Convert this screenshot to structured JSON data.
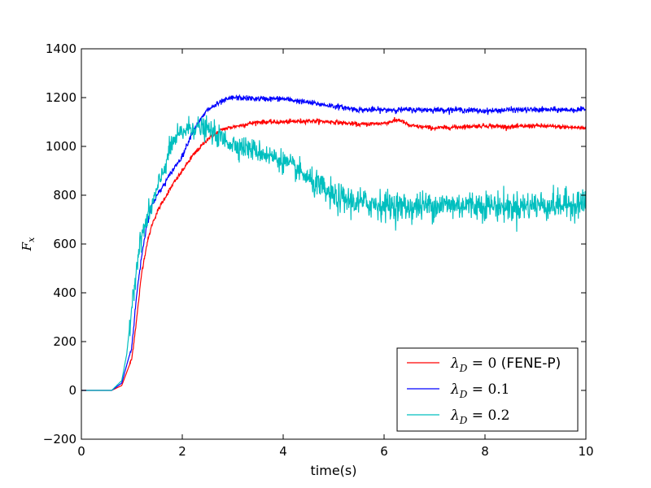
{
  "chart_data": {
    "type": "line",
    "xlabel": "time(s)",
    "ylabel": "F_x",
    "xlim": [
      0,
      10
    ],
    "ylim": [
      -200,
      1400
    ],
    "xticks": [
      0,
      2,
      4,
      6,
      8,
      10
    ],
    "yticks": [
      -200,
      0,
      200,
      400,
      600,
      800,
      1000,
      1200,
      1400
    ],
    "grid": false,
    "legend_position": "lower-right",
    "series": [
      {
        "name": "λ_D = 0 (FENE-P)",
        "legend_math": "λ",
        "legend_sub": "D",
        "legend_eq": " = 0",
        "legend_extra": " (FENE-P)",
        "color": "#ff0000",
        "noise": 8,
        "x": [
          0,
          0.6,
          0.8,
          1.0,
          1.1,
          1.2,
          1.3,
          1.4,
          1.5,
          1.6,
          1.8,
          2.0,
          2.2,
          2.5,
          2.8,
          3.0,
          3.5,
          4.0,
          4.5,
          5.0,
          5.5,
          6.0,
          6.3,
          6.5,
          7.0,
          7.5,
          8.0,
          8.5,
          9.0,
          9.5,
          10.0
        ],
        "y": [
          0,
          0,
          20,
          130,
          300,
          490,
          600,
          680,
          730,
          770,
          840,
          900,
          960,
          1030,
          1070,
          1080,
          1100,
          1100,
          1105,
          1100,
          1090,
          1095,
          1110,
          1085,
          1075,
          1080,
          1085,
          1080,
          1085,
          1080,
          1075
        ]
      },
      {
        "name": "λ_D = 0.1",
        "legend_math": "λ",
        "legend_sub": "D",
        "legend_eq": " = 0.1",
        "legend_extra": "",
        "color": "#0000ff",
        "noise": 10,
        "x": [
          0,
          0.6,
          0.8,
          1.0,
          1.1,
          1.2,
          1.3,
          1.4,
          1.5,
          1.6,
          1.8,
          2.0,
          2.2,
          2.5,
          2.8,
          3.0,
          3.5,
          4.0,
          4.5,
          5.0,
          5.5,
          6.0,
          6.5,
          7.0,
          7.5,
          8.0,
          8.5,
          9.0,
          9.5,
          10.0
        ],
        "y": [
          0,
          0,
          30,
          180,
          400,
          560,
          680,
          760,
          800,
          830,
          900,
          960,
          1060,
          1150,
          1185,
          1200,
          1195,
          1195,
          1180,
          1165,
          1150,
          1150,
          1150,
          1150,
          1150,
          1145,
          1150,
          1150,
          1150,
          1150
        ]
      },
      {
        "name": "λ_D = 0.2",
        "legend_math": "λ",
        "legend_sub": "D",
        "legend_eq": " = 0.2",
        "legend_extra": "",
        "color": "#00bfbf",
        "noise": 55,
        "x": [
          0,
          0.6,
          0.8,
          0.9,
          1.0,
          1.1,
          1.2,
          1.3,
          1.5,
          1.7,
          1.8,
          2.0,
          2.2,
          2.5,
          2.8,
          3.0,
          3.5,
          4.0,
          4.3,
          4.6,
          5.0,
          5.5,
          6.0,
          6.5,
          7.0,
          7.5,
          8.0,
          8.5,
          9.0,
          9.5,
          10.0
        ],
        "y": [
          0,
          0,
          40,
          150,
          350,
          520,
          640,
          700,
          820,
          950,
          1010,
          1060,
          1080,
          1070,
          1030,
          1010,
          980,
          940,
          900,
          850,
          790,
          770,
          760,
          750,
          760,
          760,
          760,
          750,
          760,
          760,
          770
        ]
      }
    ]
  }
}
